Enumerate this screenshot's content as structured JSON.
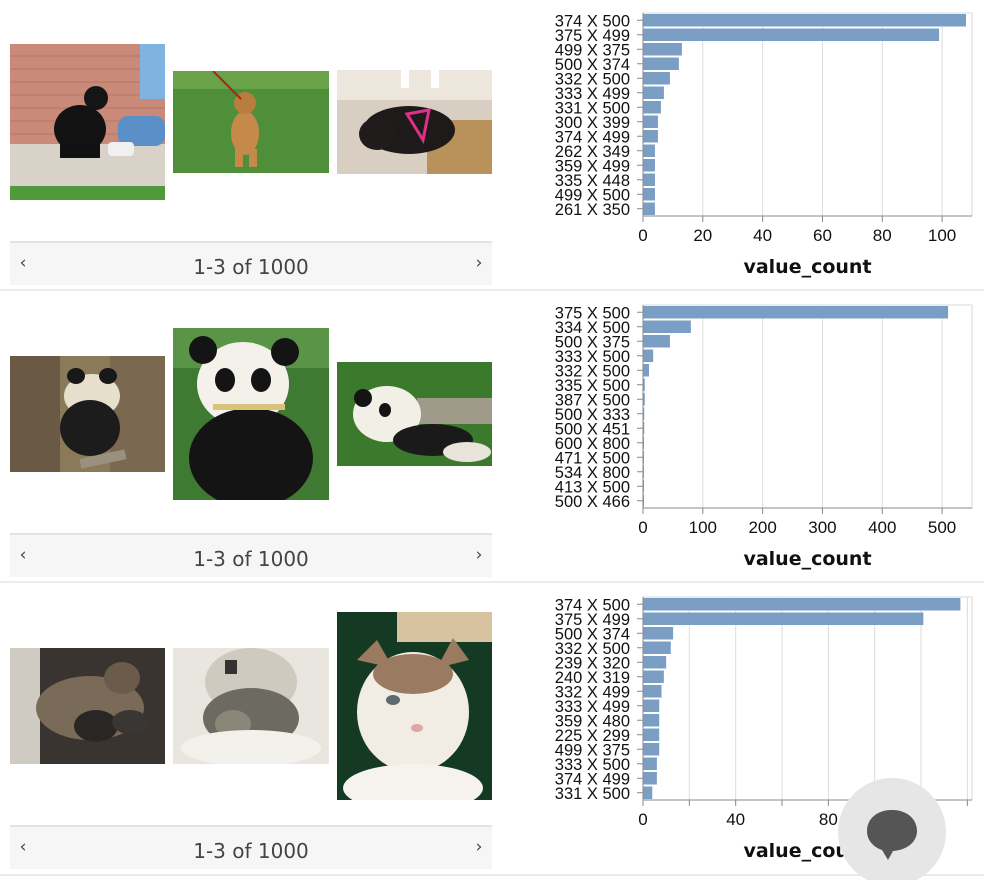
{
  "panels": [
    {
      "pager": {
        "label": "1-3 of 1000",
        "prev": "‹",
        "next": "›"
      },
      "thumbnails": [
        {
          "icon": "black-dog-photo",
          "subject": "dog"
        },
        {
          "icon": "tan-dog-photo",
          "subject": "dog"
        },
        {
          "icon": "black-pug-photo",
          "subject": "dog"
        }
      ],
      "chart_data": {
        "type": "bar",
        "orientation": "horizontal",
        "categories": [
          "374 X 500",
          "375 X 499",
          "499 X 375",
          "500 X 374",
          "332 X 500",
          "333 X 499",
          "331 X 500",
          "300 X 399",
          "374 X 499",
          "262 X 349",
          "359 X 499",
          "335 X 448",
          "499 X 500",
          "261 X 350"
        ],
        "values": [
          108,
          99,
          13,
          12,
          9,
          7,
          6,
          5,
          5,
          4,
          4,
          4,
          4,
          4
        ],
        "xlabel": "value_count",
        "ylabel": "",
        "xticks": [
          0,
          20,
          40,
          60,
          80,
          100
        ],
        "xlim": [
          0,
          110
        ],
        "grid": true,
        "bar_color": "#7b9fc4"
      }
    },
    {
      "pager": {
        "label": "1-3 of 1000",
        "prev": "‹",
        "next": "›"
      },
      "thumbnails": [
        {
          "icon": "panda-in-tree-photo",
          "subject": "panda"
        },
        {
          "icon": "panda-eating-bamboo-photo",
          "subject": "panda"
        },
        {
          "icon": "panda-lying-grass-photo",
          "subject": "panda"
        }
      ],
      "chart_data": {
        "type": "bar",
        "orientation": "horizontal",
        "categories": [
          "375 X 500",
          "334 X 500",
          "500 X 375",
          "333 X 500",
          "332 X 500",
          "335 X 500",
          "387 X 500",
          "500 X 333",
          "500 X 451",
          "600 X 800",
          "471 X 500",
          "534 X 800",
          "413 X 500",
          "500 X 466"
        ],
        "values": [
          510,
          80,
          45,
          17,
          10,
          3,
          3,
          2,
          2,
          1,
          1,
          1,
          1,
          1
        ],
        "xlabel": "value_count",
        "ylabel": "",
        "xticks": [
          0,
          100,
          200,
          300,
          400,
          500
        ],
        "xlim": [
          0,
          550
        ],
        "grid": true,
        "bar_color": "#7b9fc4"
      }
    },
    {
      "pager": {
        "label": "1-3 of 1000",
        "prev": "‹",
        "next": "›"
      },
      "thumbnails": [
        {
          "icon": "cats-sleeping-photo",
          "subject": "cat"
        },
        {
          "icon": "tabby-cat-basket-photo",
          "subject": "cat"
        },
        {
          "icon": "white-cat-closeup-photo",
          "subject": "cat"
        }
      ],
      "chart_data": {
        "type": "bar",
        "orientation": "horizontal",
        "categories": [
          "374 X 500",
          "375 X 499",
          "500 X 374",
          "332 X 500",
          "239 X 320",
          "240 X 319",
          "332 X 499",
          "333 X 499",
          "359 X 480",
          "225 X 299",
          "499 X 375",
          "333 X 500",
          "374 X 499",
          "331 X 500"
        ],
        "values": [
          137,
          121,
          13,
          12,
          10,
          9,
          8,
          7,
          7,
          7,
          7,
          6,
          6,
          4
        ],
        "xlabel": "value_count",
        "ylabel": "",
        "xticks": [
          0,
          40,
          80
        ],
        "xlim": [
          0,
          142
        ],
        "grid": true,
        "bar_color": "#7b9fc4"
      }
    }
  ],
  "chat": {
    "icon": "chat-bubble-icon"
  }
}
